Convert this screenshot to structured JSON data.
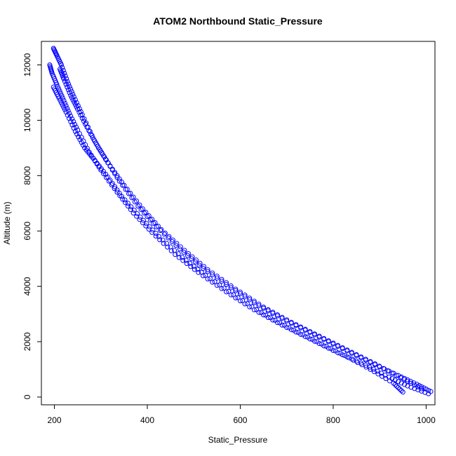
{
  "chart_data": {
    "type": "scatter",
    "title": "ATOM2 Northbound Static_Pressure",
    "xlabel": "Static_Pressure",
    "ylabel": "Altitude (m)",
    "xlim": [
      172,
      1019
    ],
    "ylim": [
      -280,
      12850
    ],
    "x_ticks": [
      200,
      400,
      600,
      800,
      1000
    ],
    "x_tick_labels": [
      "200",
      "400",
      "600",
      "800",
      "1000"
    ],
    "y_ticks": [
      0,
      2000,
      4000,
      6000,
      8000,
      10000,
      12000
    ],
    "y_tick_labels": [
      "0",
      "2000",
      "4000",
      "6000",
      "8000",
      "10000",
      "12000"
    ],
    "marker": "open-circle",
    "point_color": "#0000ff",
    "grid": false,
    "legend": "none",
    "series": [
      {
        "points": [
          [
            198,
            12600
          ],
          [
            205,
            12350
          ],
          [
            215,
            12000
          ],
          [
            228,
            11400
          ],
          [
            242,
            10850
          ],
          [
            260,
            10200
          ],
          [
            285,
            9300
          ],
          [
            310,
            8600
          ],
          [
            340,
            7800
          ],
          [
            380,
            6900
          ],
          [
            420,
            6150
          ],
          [
            470,
            5350
          ],
          [
            520,
            4650
          ],
          [
            580,
            3950
          ],
          [
            640,
            3300
          ],
          [
            700,
            2750
          ],
          [
            760,
            2250
          ],
          [
            820,
            1750
          ],
          [
            880,
            1250
          ],
          [
            940,
            780
          ],
          [
            980,
            460
          ],
          [
            1010,
            200
          ]
        ]
      },
      {
        "points": [
          [
            190,
            12000
          ],
          [
            195,
            11700
          ],
          [
            205,
            11300
          ],
          [
            218,
            10800
          ],
          [
            232,
            10250
          ],
          [
            250,
            9650
          ],
          [
            275,
            8850
          ],
          [
            300,
            8200
          ],
          [
            335,
            7400
          ],
          [
            370,
            6650
          ],
          [
            410,
            5950
          ],
          [
            460,
            5150
          ],
          [
            510,
            4500
          ],
          [
            570,
            3800
          ],
          [
            630,
            3150
          ],
          [
            690,
            2600
          ],
          [
            750,
            2100
          ],
          [
            810,
            1600
          ],
          [
            870,
            1150
          ],
          [
            920,
            720
          ],
          [
            960,
            400
          ],
          [
            1005,
            120
          ]
        ]
      },
      {
        "points": [
          [
            212,
            11850
          ],
          [
            220,
            11500
          ],
          [
            235,
            10900
          ],
          [
            250,
            10400
          ],
          [
            270,
            9750
          ],
          [
            295,
            9000
          ],
          [
            320,
            8350
          ],
          [
            350,
            7650
          ],
          [
            390,
            6800
          ],
          [
            430,
            6050
          ],
          [
            480,
            5300
          ],
          [
            530,
            4600
          ],
          [
            590,
            3900
          ],
          [
            650,
            3250
          ],
          [
            710,
            2700
          ],
          [
            770,
            2200
          ],
          [
            830,
            1700
          ],
          [
            890,
            1200
          ],
          [
            945,
            700
          ],
          [
            990,
            300
          ]
        ]
      },
      {
        "points": [
          [
            198,
            11200
          ],
          [
            210,
            10800
          ],
          [
            225,
            10300
          ],
          [
            245,
            9600
          ],
          [
            265,
            9000
          ],
          [
            287,
            8550
          ],
          [
            315,
            7950
          ],
          [
            345,
            7250
          ],
          [
            385,
            6500
          ],
          [
            425,
            5800
          ],
          [
            475,
            5050
          ],
          [
            525,
            4400
          ],
          [
            585,
            3700
          ],
          [
            645,
            3050
          ],
          [
            705,
            2500
          ],
          [
            765,
            2000
          ],
          [
            825,
            1500
          ],
          [
            880,
            1000
          ],
          [
            930,
            500
          ],
          [
            950,
            180
          ]
        ]
      }
    ]
  }
}
